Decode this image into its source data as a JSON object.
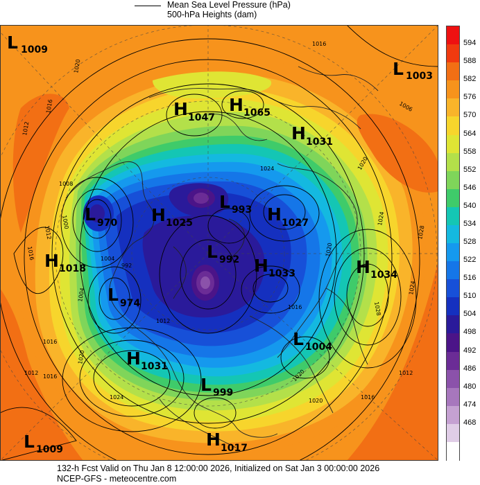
{
  "legend": {
    "line1": "Mean Sea Level Pressure (hPa)",
    "line2": "500-hPa Heights (dam)"
  },
  "colorbar": {
    "labels": [
      "594",
      "588",
      "582",
      "576",
      "570",
      "564",
      "558",
      "552",
      "546",
      "540",
      "534",
      "528",
      "522",
      "516",
      "510",
      "504",
      "498",
      "492",
      "486",
      "480",
      "474",
      "468"
    ],
    "colors": {
      "600": "#ee1111",
      "594": "#f03a0f",
      "588": "#f26f14",
      "582": "#f7931c",
      "576": "#f9b42a",
      "570": "#f7d52c",
      "564": "#dfe534",
      "558": "#b3e04a",
      "552": "#7fd55a",
      "546": "#3fcb6a",
      "540": "#14c6b4",
      "534": "#14b9e0",
      "528": "#1599ee",
      "522": "#1576e8",
      "516": "#1750d8",
      "510": "#1530bf",
      "504": "#2a1a9a",
      "498": "#4b1488",
      "492": "#6b2c96",
      "486": "#8b52aa",
      "480": "#a777bd",
      "474": "#c5a1d2",
      "468": "#e0cde7",
      "462": "#ffffff"
    }
  },
  "pressure_centers": [
    {
      "type": "L",
      "value": "1009"
    },
    {
      "type": "L",
      "value": "1003"
    },
    {
      "type": "H",
      "value": "1047"
    },
    {
      "type": "H",
      "value": "1065"
    },
    {
      "type": "H",
      "value": "1031"
    },
    {
      "type": "L",
      "value": "970"
    },
    {
      "type": "H",
      "value": "1025"
    },
    {
      "type": "L",
      "value": "993"
    },
    {
      "type": "H",
      "value": "1027"
    },
    {
      "type": "H",
      "value": "1018"
    },
    {
      "type": "L",
      "value": "992"
    },
    {
      "type": "H",
      "value": "1033"
    },
    {
      "type": "H",
      "value": "1034"
    },
    {
      "type": "L",
      "value": "974"
    },
    {
      "type": "L",
      "value": "1004"
    },
    {
      "type": "H",
      "value": "1031"
    },
    {
      "type": "L",
      "value": "999"
    },
    {
      "type": "L",
      "value": "1009"
    },
    {
      "type": "H",
      "value": "1017"
    }
  ],
  "isobar_labels": [
    "1016",
    "1020",
    "1012",
    "1016",
    "1006",
    "1008",
    "1012",
    "1016",
    "1020",
    "1024",
    "1000",
    "1004",
    "992",
    "1012",
    "1016",
    "1004",
    "1020",
    "1024",
    "1028",
    "1016",
    "1012",
    "1016",
    "1020",
    "1024",
    "1020",
    "1016",
    "1012",
    "1024",
    "1020",
    "1028"
  ],
  "footer": {
    "line1": "132-h Fcst Valid on Thu Jan  8 12:00:00 2026, Initialized on Sat Jan  3 00:00:00 2026",
    "line2": "NCEP-GFS  - meteocentre.com"
  }
}
